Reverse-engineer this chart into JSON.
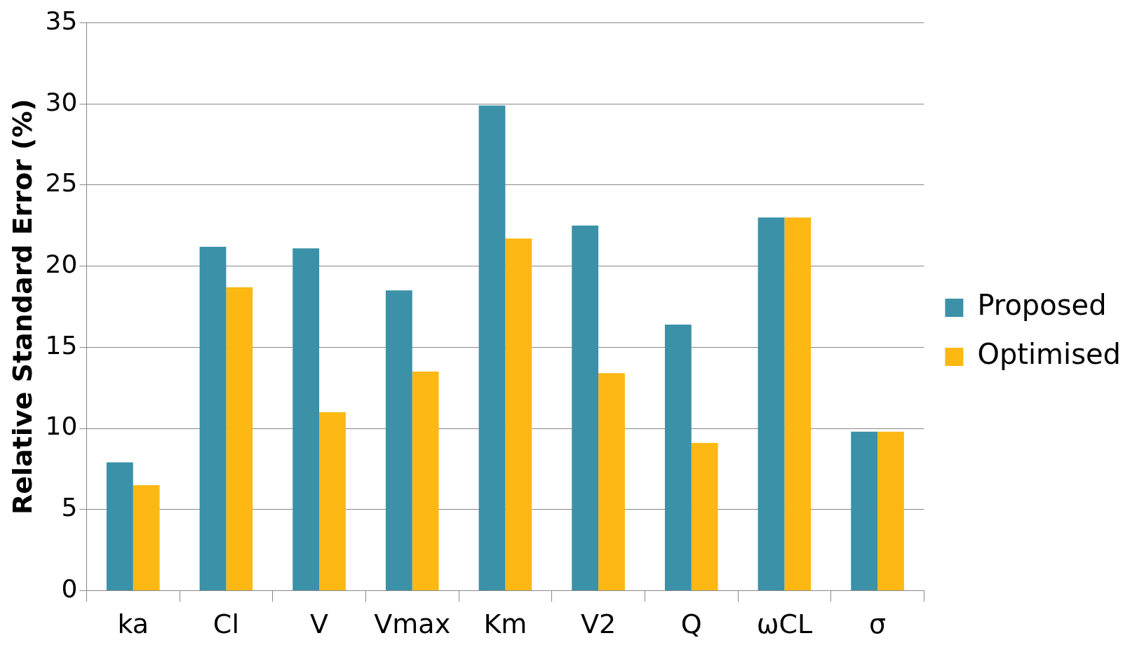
{
  "chart_data": {
    "type": "bar",
    "ylabel": "Relative Standard Error (%)",
    "categories": [
      "ka",
      "Cl",
      "V",
      "Vmax",
      "Km",
      "V2",
      "Q",
      "ωCL",
      "σ"
    ],
    "series": [
      {
        "name": "Proposed",
        "color": "#3a91a8",
        "values": [
          7.9,
          21.2,
          21.1,
          18.5,
          29.9,
          22.5,
          16.4,
          23.0,
          9.8
        ]
      },
      {
        "name": "Optimised",
        "color": "#fdb813",
        "values": [
          6.5,
          18.7,
          11.0,
          13.5,
          21.7,
          13.4,
          9.1,
          23.0,
          9.8
        ]
      }
    ],
    "ylim": [
      0,
      35
    ],
    "yticks": [
      0,
      5,
      10,
      15,
      20,
      25,
      30,
      35
    ],
    "grid": "y",
    "legend": "right"
  }
}
